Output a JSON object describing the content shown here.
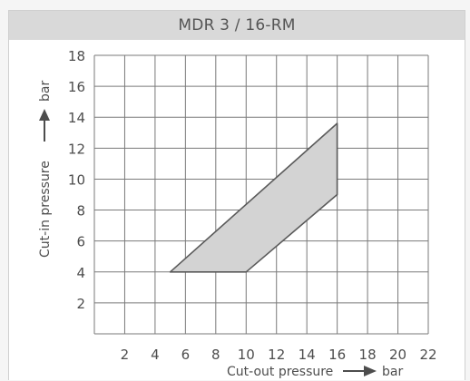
{
  "chart_data": {
    "type": "area",
    "title": "MDR 3 / 16-RM",
    "xlabel": "Cut-out pressure",
    "xunit": "bar",
    "ylabel": "Cut-in pressure",
    "yunit": "bar",
    "xlim": [
      0,
      22
    ],
    "ylim": [
      0,
      18
    ],
    "xticks": [
      2,
      4,
      6,
      8,
      10,
      12,
      14,
      16,
      18,
      20,
      22
    ],
    "yticks": [
      2,
      4,
      6,
      8,
      10,
      12,
      14,
      16,
      18
    ],
    "grid": true,
    "region": {
      "polygon": [
        [
          5,
          4
        ],
        [
          10,
          4
        ],
        [
          16,
          9
        ],
        [
          16,
          13.6
        ]
      ],
      "fill": "#d3d3d3",
      "stroke": "#5a5a5a"
    }
  }
}
